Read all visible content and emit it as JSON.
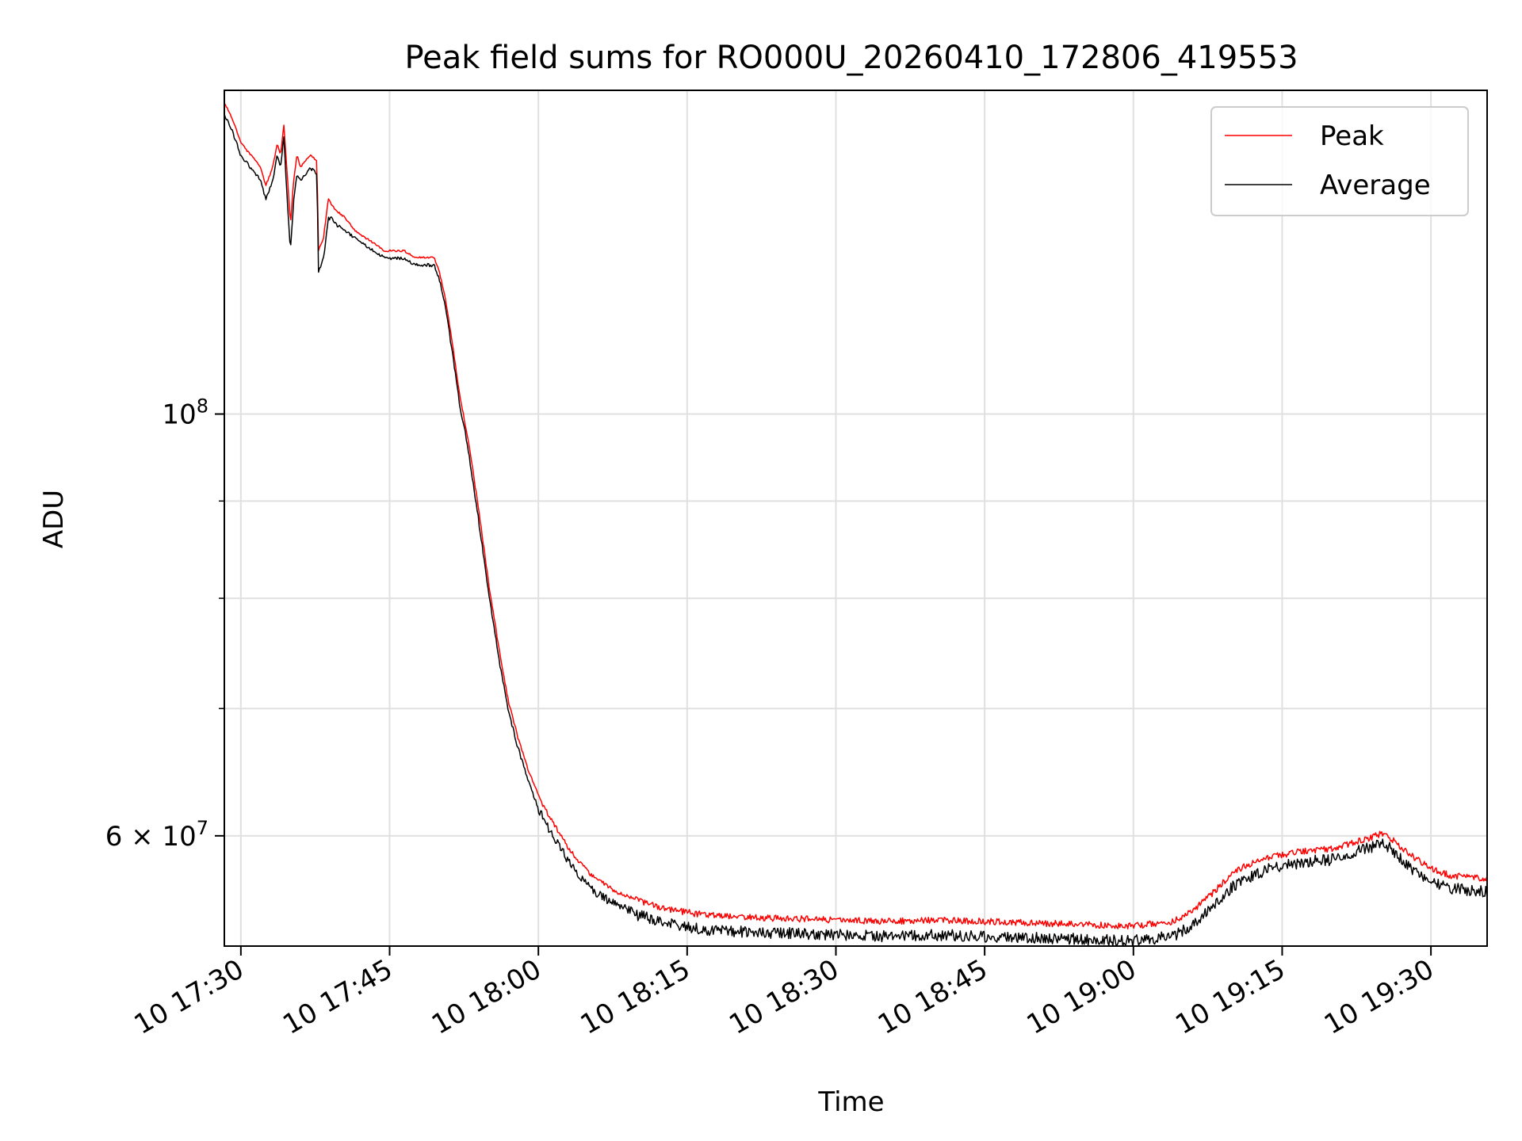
{
  "chart_data": {
    "type": "line",
    "title": "Peak field sums for RO000U_20260410_172806_419553",
    "xlabel": "Time",
    "ylabel": "ADU",
    "x_unit": "time of day (10 Apr 2026)",
    "xlim": [
      "17:28:20",
      "19:35:40"
    ],
    "ylim": [
      52500000,
      148000000
    ],
    "y_scale": "log",
    "x_ticks": [
      {
        "value": "17:30",
        "label": "10 17:30"
      },
      {
        "value": "17:45",
        "label": "10 17:45"
      },
      {
        "value": "18:00",
        "label": "10 18:00"
      },
      {
        "value": "18:15",
        "label": "10 18:15"
      },
      {
        "value": "18:30",
        "label": "10 18:30"
      },
      {
        "value": "18:45",
        "label": "10 18:45"
      },
      {
        "value": "19:00",
        "label": "10 19:00"
      },
      {
        "value": "19:15",
        "label": "10 19:15"
      },
      {
        "value": "19:30",
        "label": "10 19:30"
      }
    ],
    "y_major_ticks": [
      {
        "value": 60000000,
        "label_base": "6 × 10",
        "label_exp": "7"
      },
      {
        "value": 100000000,
        "label_base": "10",
        "label_exp": "8"
      }
    ],
    "y_minor_ticks": [
      70000000,
      80000000,
      90000000
    ],
    "grid": true,
    "legend_position": "top-right",
    "series": [
      {
        "name": "Peak",
        "color": "#ff0000",
        "x": [
          "17:28:20",
          "17:29:10",
          "17:30:00",
          "17:31:00",
          "17:32:00",
          "17:32:30",
          "17:33:00",
          "17:33:20",
          "17:33:40",
          "17:34:00",
          "17:34:20",
          "17:34:40",
          "17:35:00",
          "17:35:20",
          "17:35:40",
          "17:36:00",
          "17:36:30",
          "17:37:00",
          "17:37:40",
          "17:37:50",
          "17:38:20",
          "17:38:50",
          "17:39:10",
          "17:39:40",
          "17:40:30",
          "17:41:30",
          "17:42:30",
          "17:43:30",
          "17:44:30",
          "17:45:30",
          "17:46:30",
          "17:47:30",
          "17:48:30",
          "17:49:30",
          "17:50:00",
          "17:50:30",
          "17:51:00",
          "17:52:00",
          "17:53:00",
          "17:54:00",
          "17:55:00",
          "17:56:00",
          "17:57:00",
          "17:58:00",
          "17:59:00",
          "18:00:00",
          "18:01:00",
          "18:02:00",
          "18:03:00",
          "18:04:00",
          "18:05:00",
          "18:06:00",
          "18:08:00",
          "18:10:00",
          "18:12:00",
          "18:14:00",
          "18:16:00",
          "18:18:00",
          "18:20:00",
          "18:25:00",
          "18:30:00",
          "18:35:00",
          "18:40:00",
          "18:45:00",
          "18:50:00",
          "18:55:00",
          "19:00:00",
          "19:04:00",
          "19:06:00",
          "19:08:00",
          "19:10:00",
          "19:12:00",
          "19:14:00",
          "19:16:00",
          "19:18:00",
          "19:20:00",
          "19:22:00",
          "19:24:00",
          "19:25:00",
          "19:26:00",
          "19:28:00",
          "19:30:00",
          "19:32:00",
          "19:35:40"
        ],
        "y": [
          146000000,
          143000000,
          139000000,
          137000000,
          135000000,
          132000000,
          134000000,
          136000000,
          139000000,
          137000000,
          142000000,
          134000000,
          126000000,
          133000000,
          137000000,
          135000000,
          136000000,
          137000000,
          136000000,
          122000000,
          124000000,
          130000000,
          129000000,
          128000000,
          127000000,
          125000000,
          124000000,
          123000000,
          122000000,
          122000000,
          122000000,
          121000000,
          121000000,
          121000000,
          119000000,
          116000000,
          112000000,
          103000000,
          96500000,
          89000000,
          81500000,
          75500000,
          70600000,
          67500000,
          65000000,
          63100000,
          61700000,
          60500000,
          59300000,
          58400000,
          57600000,
          57000000,
          56200000,
          55700000,
          55300000,
          55000000,
          54800000,
          54700000,
          54600000,
          54500000,
          54400000,
          54300000,
          54400000,
          54300000,
          54200000,
          54100000,
          54000000,
          54300000,
          55000000,
          56200000,
          57600000,
          58300000,
          58700000,
          59000000,
          59200000,
          59300000,
          59700000,
          60100000,
          60400000,
          60000000,
          58800000,
          57900000,
          57400000,
          57200000
        ]
      },
      {
        "name": "Average",
        "color": "#000000",
        "x": [
          "17:28:20",
          "17:29:10",
          "17:30:00",
          "17:31:00",
          "17:32:00",
          "17:32:30",
          "17:33:00",
          "17:33:20",
          "17:33:40",
          "17:34:00",
          "17:34:20",
          "17:34:40",
          "17:35:00",
          "17:35:20",
          "17:35:40",
          "17:36:00",
          "17:36:30",
          "17:37:00",
          "17:37:40",
          "17:37:50",
          "17:38:20",
          "17:38:50",
          "17:39:10",
          "17:39:40",
          "17:40:30",
          "17:41:30",
          "17:42:30",
          "17:43:30",
          "17:44:30",
          "17:45:30",
          "17:46:30",
          "17:47:30",
          "17:48:30",
          "17:49:30",
          "17:50:00",
          "17:50:30",
          "17:51:00",
          "17:52:00",
          "17:53:00",
          "17:54:00",
          "17:55:00",
          "17:56:00",
          "17:57:00",
          "17:58:00",
          "17:59:00",
          "18:00:00",
          "18:01:00",
          "18:02:00",
          "18:03:00",
          "18:04:00",
          "18:05:00",
          "18:06:00",
          "18:08:00",
          "18:10:00",
          "18:12:00",
          "18:14:00",
          "18:16:00",
          "18:18:00",
          "18:20:00",
          "18:25:00",
          "18:30:00",
          "18:35:00",
          "18:40:00",
          "18:45:00",
          "18:50:00",
          "18:55:00",
          "19:00:00",
          "19:04:00",
          "19:06:00",
          "19:08:00",
          "19:10:00",
          "19:12:00",
          "19:14:00",
          "19:16:00",
          "19:18:00",
          "19:20:00",
          "19:22:00",
          "19:24:00",
          "19:25:00",
          "19:26:00",
          "19:28:00",
          "19:30:00",
          "19:32:00",
          "19:35:40"
        ],
        "y": [
          144000000,
          141000000,
          137000000,
          135000000,
          133000000,
          130000000,
          132000000,
          134000000,
          137000000,
          135000000,
          140000000,
          130000000,
          122000000,
          130000000,
          134000000,
          133000000,
          134000000,
          135000000,
          134000000,
          119000000,
          121000000,
          127000000,
          127000000,
          126000000,
          125000000,
          124000000,
          123000000,
          122000000,
          121000000,
          121000000,
          121000000,
          120000000,
          120000000,
          120000000,
          118000000,
          115000000,
          111000000,
          102000000,
          95500000,
          88000000,
          80500000,
          74700000,
          69800000,
          66800000,
          64200000,
          62300000,
          60900000,
          59700000,
          58500000,
          57600000,
          56800000,
          56200000,
          55400000,
          54900000,
          54500000,
          54200000,
          54000000,
          53900000,
          53800000,
          53700000,
          53600000,
          53500000,
          53600000,
          53500000,
          53400000,
          53300000,
          53200000,
          53500000,
          54200000,
          55400000,
          56800000,
          57600000,
          58100000,
          58400000,
          58600000,
          58700000,
          59200000,
          59600000,
          59900000,
          59500000,
          58100000,
          57200000,
          56700000,
          56500000
        ]
      }
    ]
  }
}
